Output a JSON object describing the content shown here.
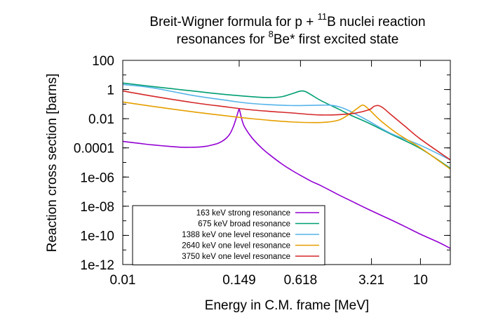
{
  "chart_data": {
    "type": "line",
    "title_line1": {
      "main": "Breit-Wigner formula for p + ",
      "sup": "11",
      "tail": "B nuclei reaction"
    },
    "title_line2": {
      "main": "resonances for ",
      "sup": "8",
      "tail": "Be* first excited state"
    },
    "xlabel": "Energy in C.M. frame [MeV]",
    "ylabel": "Reaction cross section [barns]",
    "x_scale": "log",
    "y_scale": "log",
    "xlim": [
      0.01,
      20
    ],
    "ylim": [
      1e-12,
      100
    ],
    "grid": false,
    "legend_position": "bottom-left",
    "x_ticks": [
      {
        "value": 0.01,
        "label": "0.01"
      },
      {
        "value": 0.149,
        "label": "0.149"
      },
      {
        "value": 0.618,
        "label": "0.618"
      },
      {
        "value": 3.21,
        "label": "3.21"
      },
      {
        "value": 10,
        "label": "10"
      }
    ],
    "y_ticks": [
      {
        "value": 100,
        "label": "100"
      },
      {
        "value": 1,
        "label": "1"
      },
      {
        "value": 0.01,
        "label": "0.01"
      },
      {
        "value": 0.0001,
        "label": "0.0001"
      },
      {
        "value": 1e-06,
        "label": "1e-06"
      },
      {
        "value": 1e-08,
        "label": "1e-08"
      },
      {
        "value": 1e-10,
        "label": "1e-10"
      },
      {
        "value": 1e-12,
        "label": "1e-12"
      }
    ],
    "series": [
      {
        "name": "163 keV strong resonance",
        "color": "#9400d3",
        "points": [
          [
            0.01,
            0.00028
          ],
          [
            0.015,
            0.0002
          ],
          [
            0.02,
            0.00016
          ],
          [
            0.03,
            0.000125
          ],
          [
            0.04,
            0.00011
          ],
          [
            0.05,
            0.00011
          ],
          [
            0.06,
            0.000115
          ],
          [
            0.07,
            0.00013
          ],
          [
            0.08,
            0.00016
          ],
          [
            0.09,
            0.0002
          ],
          [
            0.1,
            0.00028
          ],
          [
            0.11,
            0.00045
          ],
          [
            0.12,
            0.0009
          ],
          [
            0.13,
            0.0028
          ],
          [
            0.14,
            0.0125
          ],
          [
            0.145,
            0.028
          ],
          [
            0.149,
            0.045
          ],
          [
            0.153,
            0.024
          ],
          [
            0.16,
            0.007
          ],
          [
            0.17,
            0.0025
          ],
          [
            0.2,
            0.0005
          ],
          [
            0.25,
            0.0001
          ],
          [
            0.3,
            3.5e-05
          ],
          [
            0.4,
            8e-06
          ],
          [
            0.5,
            3e-06
          ],
          [
            0.618,
            1.3e-06
          ],
          [
            0.8,
            5e-07
          ],
          [
            1,
            2.5e-07
          ],
          [
            1.5,
            6e-08
          ],
          [
            2,
            2.3e-08
          ],
          [
            3,
            6e-09
          ],
          [
            5,
            1.2e-09
          ],
          [
            7,
            4e-10
          ],
          [
            10,
            1.2e-10
          ],
          [
            15,
            3.5e-11
          ],
          [
            20,
            1.3e-11
          ]
        ]
      },
      {
        "name": "675 keV broad resonance",
        "color": "#009e73",
        "points": [
          [
            0.01,
            2.8
          ],
          [
            0.02,
            1.6
          ],
          [
            0.05,
            0.8
          ],
          [
            0.1,
            0.48
          ],
          [
            0.2,
            0.32
          ],
          [
            0.3,
            0.28
          ],
          [
            0.4,
            0.32
          ],
          [
            0.5,
            0.5
          ],
          [
            0.6,
            0.75
          ],
          [
            0.65,
            0.8
          ],
          [
            0.7,
            0.7
          ],
          [
            0.8,
            0.42
          ],
          [
            1,
            0.17
          ],
          [
            1.5,
            0.045
          ],
          [
            2,
            0.017
          ],
          [
            3,
            0.005
          ],
          [
            5,
            0.0009
          ],
          [
            10,
            9e-05
          ],
          [
            20,
            4e-06
          ]
        ]
      },
      {
        "name": "1388 keV one level resonance",
        "color": "#56b4e9",
        "points": [
          [
            0.01,
            2.2
          ],
          [
            0.02,
            1.3
          ],
          [
            0.05,
            0.4
          ],
          [
            0.1,
            0.2
          ],
          [
            0.2,
            0.11
          ],
          [
            0.5,
            0.08
          ],
          [
            1,
            0.085
          ],
          [
            1.2,
            0.085
          ],
          [
            1.4,
            0.075
          ],
          [
            1.7,
            0.05
          ],
          [
            2,
            0.03
          ],
          [
            3,
            0.007
          ],
          [
            5,
            0.001
          ],
          [
            10,
            0.00015
          ],
          [
            20,
            1.5e-05
          ]
        ]
      },
      {
        "name": "2640 keV one level resonance",
        "color": "#e69f00",
        "points": [
          [
            0.01,
            0.14
          ],
          [
            0.02,
            0.07
          ],
          [
            0.05,
            0.03
          ],
          [
            0.1,
            0.017
          ],
          [
            0.2,
            0.01
          ],
          [
            0.5,
            0.006
          ],
          [
            1,
            0.0055
          ],
          [
            1.5,
            0.008
          ],
          [
            2,
            0.025
          ],
          [
            2.5,
            0.075
          ],
          [
            2.64,
            0.085
          ],
          [
            2.8,
            0.07
          ],
          [
            3.2,
            0.03
          ],
          [
            4,
            0.007
          ],
          [
            6,
            0.00085
          ],
          [
            10,
            0.0001
          ],
          [
            20,
            3.5e-06
          ]
        ]
      },
      {
        "name": "3750 keV one level resonance",
        "color": "#d62728",
        "points": [
          [
            0.01,
            0.8
          ],
          [
            0.02,
            0.35
          ],
          [
            0.05,
            0.13
          ],
          [
            0.1,
            0.07
          ],
          [
            0.2,
            0.04
          ],
          [
            0.5,
            0.025
          ],
          [
            1,
            0.018
          ],
          [
            2,
            0.022
          ],
          [
            3,
            0.04
          ],
          [
            3.4,
            0.07
          ],
          [
            3.75,
            0.08
          ],
          [
            4.2,
            0.055
          ],
          [
            5,
            0.02
          ],
          [
            7,
            0.003
          ],
          [
            10,
            0.0004
          ],
          [
            20,
            1.5e-05
          ]
        ]
      }
    ]
  }
}
